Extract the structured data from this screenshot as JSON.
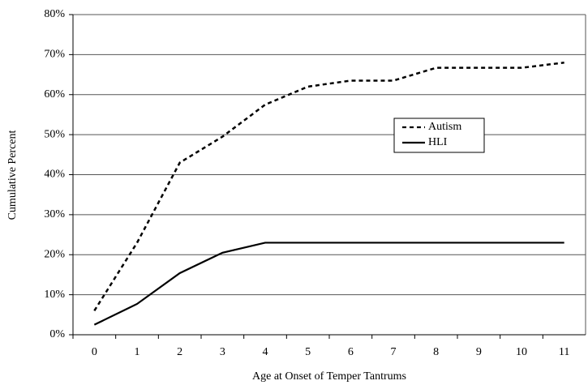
{
  "chart_data": {
    "type": "line",
    "xlabel": "Age at Onset of Temper Tantrums",
    "ylabel": "Cumulative Percent",
    "categories": [
      "0",
      "1",
      "2",
      "3",
      "4",
      "5",
      "6",
      "7",
      "8",
      "9",
      "10",
      "11"
    ],
    "series": [
      {
        "name": "Autism",
        "color": "#000000",
        "dash": true,
        "values": [
          6,
          23,
          43,
          49.5,
          57.5,
          62,
          63.5,
          63.5,
          66.7,
          66.7,
          66.7,
          68
        ]
      },
      {
        "name": "HLI",
        "color": "#000000",
        "dash": false,
        "values": [
          2.5,
          7.7,
          15.4,
          20.5,
          23,
          23,
          23,
          23,
          23,
          23,
          23,
          23
        ]
      }
    ],
    "ylim": [
      0,
      80
    ],
    "yticks": [
      {
        "value": 0,
        "label": "0%"
      },
      {
        "value": 10,
        "label": "10%"
      },
      {
        "value": 20,
        "label": "20%"
      },
      {
        "value": 30,
        "label": "30%"
      },
      {
        "value": 40,
        "label": "40%"
      },
      {
        "value": 50,
        "label": "50%"
      },
      {
        "value": 60,
        "label": "60%"
      },
      {
        "value": 70,
        "label": "70%"
      },
      {
        "value": 80,
        "label": "80%"
      }
    ],
    "grid": true
  }
}
